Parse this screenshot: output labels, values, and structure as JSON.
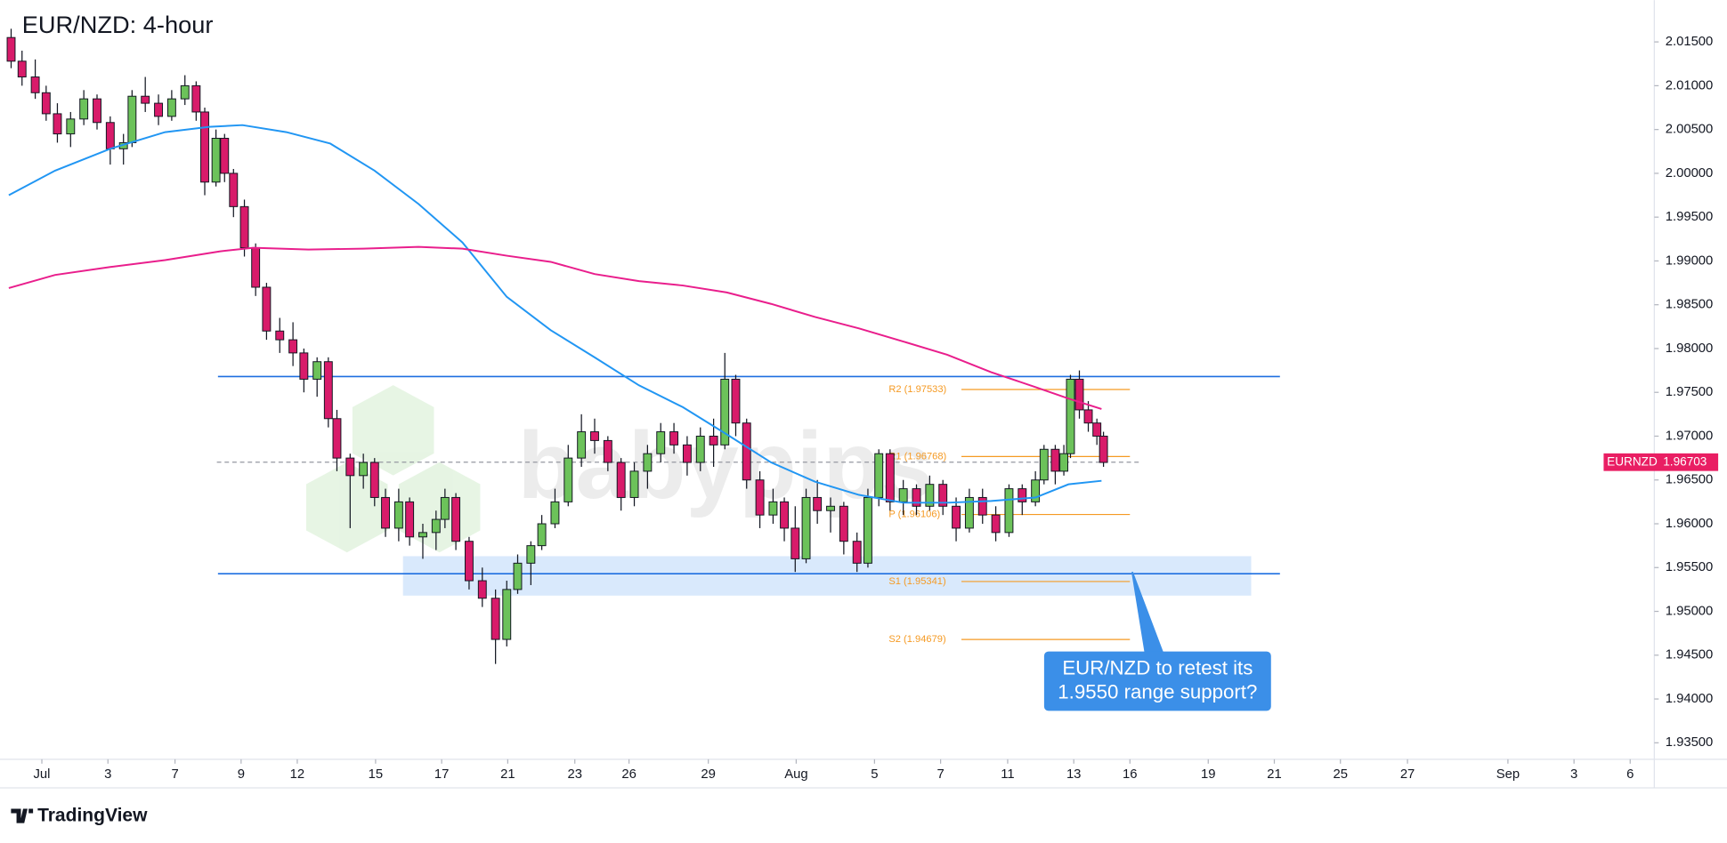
{
  "chart_data": {
    "type": "candlestick",
    "title": "EUR/NZD: 4-hour",
    "watermark": "babypips",
    "brand": "TradingView",
    "x": [
      -0.93,
      -0.6,
      -0.2,
      0.13,
      0.47,
      0.87,
      1.27,
      1.67,
      2.07,
      2.47,
      2.73,
      3.13,
      3.53,
      3.93,
      4.33,
      4.67,
      4.93,
      5.27,
      5.53,
      5.8,
      6.13,
      6.47,
      6.8,
      7.2,
      7.6,
      7.93,
      8.33,
      8.67,
      8.93,
      9.33,
      9.73,
      10.07,
      10.4,
      10.8,
      11.13,
      11.53,
      11.93,
      12.2,
      12.53,
      12.93,
      13.33,
      13.73,
      14.07,
      14.4,
      14.8,
      15.13,
      15.53,
      15.93,
      16.33,
      16.73,
      17.13,
      17.53,
      17.93,
      18.33,
      18.73,
      19.13,
      19.53,
      19.93,
      20.33,
      20.67,
      21,
      21.33,
      21.73,
      22.13,
      22.47,
      22.8,
      23.13,
      23.47,
      23.87,
      24.27,
      24.67,
      25,
      25.33,
      25.67,
      26.07,
      26.47,
      26.87,
      27.27,
      27.67,
      28.07,
      28.47,
      28.87,
      29.27,
      29.67,
      30.07,
      30.33,
      30.67,
      30.93,
      31.13,
      31.4,
      31.67,
      31.93,
      32.13
    ],
    "open": [
      2.0155,
      2.0128,
      2.011,
      2.0092,
      2.0068,
      2.0045,
      2.0062,
      2.0085,
      2.0058,
      2.0028,
      2.0035,
      2.0088,
      2.008,
      2.0065,
      2.0085,
      2.01,
      2.007,
      1.999,
      2.004,
      2.0,
      1.9962,
      1.9915,
      1.987,
      1.982,
      1.981,
      1.9795,
      1.9765,
      1.9785,
      1.972,
      1.9675,
      1.9655,
      1.967,
      1.963,
      1.9595,
      1.9625,
      1.9585,
      1.959,
      1.9605,
      1.963,
      1.958,
      1.9535,
      1.9515,
      1.9468,
      1.9525,
      1.9555,
      1.9575,
      1.96,
      1.9625,
      1.9675,
      1.9705,
      1.9695,
      1.967,
      1.963,
      1.966,
      1.968,
      1.9705,
      1.969,
      1.967,
      1.97,
      1.969,
      1.9765,
      1.9715,
      1.965,
      1.961,
      1.9625,
      1.9595,
      1.956,
      1.963,
      1.9615,
      1.962,
      1.958,
      1.9555,
      1.963,
      1.968,
      1.9625,
      1.964,
      1.962,
      1.9645,
      1.962,
      1.9595,
      1.963,
      1.961,
      1.959,
      1.964,
      1.9625,
      1.965,
      1.9685,
      1.966,
      1.968,
      1.9765,
      1.973,
      1.9715,
      1.97
    ],
    "high": [
      2.0165,
      2.014,
      2.013,
      2.01,
      2.008,
      2.007,
      2.0095,
      2.009,
      2.0065,
      2.0045,
      2.0095,
      2.011,
      2.009,
      2.0095,
      2.0112,
      2.0105,
      2.0075,
      2.005,
      2.0045,
      2.0005,
      1.997,
      1.992,
      1.9875,
      1.9835,
      1.983,
      1.98,
      1.979,
      1.979,
      1.973,
      1.968,
      1.968,
      1.9675,
      1.964,
      1.964,
      1.963,
      1.96,
      1.9615,
      1.964,
      1.9635,
      1.9585,
      1.955,
      1.9525,
      1.9535,
      1.9565,
      1.958,
      1.961,
      1.964,
      1.969,
      1.9725,
      1.972,
      1.97,
      1.9675,
      1.967,
      1.969,
      1.9715,
      1.9715,
      1.97,
      1.971,
      1.972,
      1.9795,
      1.977,
      1.972,
      1.966,
      1.964,
      1.963,
      1.962,
      1.964,
      1.965,
      1.963,
      1.9625,
      1.959,
      1.964,
      1.9685,
      1.9685,
      1.965,
      1.9645,
      1.9655,
      1.965,
      1.963,
      1.964,
      1.964,
      1.962,
      1.9645,
      1.9645,
      1.966,
      1.969,
      1.969,
      1.969,
      1.977,
      1.9775,
      1.974,
      1.972,
      1.9705
    ],
    "low": [
      2.012,
      2.01,
      2.0085,
      2.006,
      2.0035,
      2.003,
      2.0055,
      2.005,
      2.001,
      2.001,
      2.003,
      2.007,
      2.0055,
      2.006,
      2.0078,
      2.006,
      1.9975,
      1.9985,
      1.999,
      1.995,
      1.9905,
      1.986,
      1.981,
      1.9795,
      1.978,
      1.975,
      1.9745,
      1.971,
      1.966,
      1.9595,
      1.964,
      1.962,
      1.9585,
      1.958,
      1.9575,
      1.956,
      1.957,
      1.9595,
      1.957,
      1.9525,
      1.9505,
      1.944,
      1.946,
      1.952,
      1.953,
      1.957,
      1.9595,
      1.962,
      1.9665,
      1.968,
      1.966,
      1.9615,
      1.962,
      1.964,
      1.967,
      1.968,
      1.9655,
      1.966,
      1.9665,
      1.9685,
      1.97,
      1.964,
      1.9595,
      1.96,
      1.958,
      1.9545,
      1.9555,
      1.96,
      1.959,
      1.9565,
      1.9545,
      1.955,
      1.962,
      1.9615,
      1.961,
      1.961,
      1.9615,
      1.961,
      1.958,
      1.959,
      1.96,
      1.958,
      1.9585,
      1.961,
      1.962,
      1.9645,
      1.9645,
      1.9655,
      1.9675,
      1.972,
      1.9705,
      1.969,
      1.9665
    ],
    "close": [
      2.0128,
      2.011,
      2.0092,
      2.0068,
      2.0045,
      2.0062,
      2.0085,
      2.0058,
      2.0028,
      2.0035,
      2.0088,
      2.008,
      2.0065,
      2.0085,
      2.01,
      2.007,
      1.999,
      2.004,
      2.0,
      1.9962,
      1.9915,
      1.987,
      1.982,
      1.981,
      1.9795,
      1.9765,
      1.9785,
      1.972,
      1.9675,
      1.9655,
      1.967,
      1.963,
      1.9595,
      1.9625,
      1.9585,
      1.959,
      1.9605,
      1.963,
      1.958,
      1.9535,
      1.9515,
      1.9468,
      1.9525,
      1.9555,
      1.9575,
      1.96,
      1.9625,
      1.9675,
      1.9705,
      1.9695,
      1.967,
      1.963,
      1.966,
      1.968,
      1.9705,
      1.969,
      1.967,
      1.97,
      1.969,
      1.9765,
      1.9715,
      1.965,
      1.961,
      1.9625,
      1.9595,
      1.956,
      1.963,
      1.9615,
      1.962,
      1.958,
      1.9555,
      1.963,
      1.968,
      1.9625,
      1.964,
      1.962,
      1.9645,
      1.962,
      1.9595,
      1.963,
      1.961,
      1.959,
      1.964,
      1.9625,
      1.965,
      1.9685,
      1.966,
      1.968,
      1.9765,
      1.973,
      1.9715,
      1.97,
      1.967
    ],
    "up_color": "#6cc25a",
    "down_color": "#d81b6a",
    "wick_color": "#131722",
    "moving_averages": [
      {
        "color": "#2196f3",
        "x": [
          -1,
          0.4,
          2.07,
          3.73,
          5.07,
          6.07,
          7.4,
          8.73,
          10.07,
          11.4,
          12.73,
          14.07,
          15.4,
          16.73,
          18.07,
          19.4,
          20.73,
          22.07,
          23.4,
          24.73,
          26.07,
          27.4,
          28.73,
          30.07,
          31.07,
          32.07
        ],
        "values": [
          1.9975,
          2.0003,
          2.0028,
          2.0047,
          2.0053,
          2.0055,
          2.0047,
          2.0034,
          2.0003,
          1.9965,
          1.9921,
          1.9859,
          1.9821,
          1.979,
          1.9758,
          1.9733,
          1.9702,
          1.967,
          1.9648,
          1.9633,
          1.9624,
          1.9624,
          1.9626,
          1.963,
          1.9645,
          1.9649
        ]
      },
      {
        "color": "#e91e8c",
        "x": [
          -1,
          0.4,
          2.07,
          3.73,
          5.4,
          6.4,
          8.07,
          9.73,
          11.4,
          12.73,
          14.07,
          15.4,
          16.73,
          18.07,
          19.4,
          20.73,
          22.07,
          23.4,
          24.73,
          26.07,
          27.4,
          28.73,
          30.07,
          31.07,
          32.07
        ],
        "values": [
          1.9869,
          1.9884,
          1.9893,
          1.9901,
          1.9911,
          1.9915,
          1.9913,
          1.9914,
          1.9916,
          1.9914,
          1.9906,
          1.9899,
          1.9885,
          1.9877,
          1.9872,
          1.9864,
          1.9851,
          1.9836,
          1.9823,
          1.9808,
          1.9793,
          1.9773,
          1.9756,
          1.9743,
          1.9731
        ]
      }
    ],
    "levels": [
      {
        "value": 1.9768,
        "color": "#1e6fe0",
        "span": [
          5.33,
          37.47
        ]
      },
      {
        "value": 1.9543,
        "color": "#1e6fe0",
        "span": [
          5.33,
          37.47
        ]
      }
    ],
    "zone": {
      "from": 1.9518,
      "to": 1.9563,
      "color": "#cfe3fb",
      "span": [
        10.93,
        36.6
      ]
    },
    "pivots": {
      "color": "#f59a23",
      "span": [
        27.83,
        32.93
      ],
      "items": [
        {
          "label": "R2 (1.97533)",
          "value": 1.97533
        },
        {
          "label": "R1 (1.96768)",
          "value": 1.96768
        },
        {
          "label": "P (1.96106)",
          "value": 1.96106
        },
        {
          "label": "S1 (1.95341)",
          "value": 1.95341
        },
        {
          "label": "S2 (1.94679)",
          "value": 1.94679
        }
      ]
    },
    "current_price": {
      "symbol": "EURNZD",
      "value": 1.96703,
      "color": "#e91e63"
    },
    "annotation": {
      "lines": [
        "EUR/NZD to retest its",
        "1.9550 range support?"
      ],
      "target": [
        33.0,
        1.9545
      ],
      "color": "#3b8fe8"
    },
    "xlim": [
      -1,
      48.8
    ],
    "ylim": [
      1.93312,
      2.01977
    ],
    "xticks": [
      {
        "value": 0,
        "label": "Jul"
      },
      {
        "value": 2,
        "label": "3"
      },
      {
        "value": 4.03,
        "label": "7"
      },
      {
        "value": 6.03,
        "label": "9"
      },
      {
        "value": 7.73,
        "label": "12"
      },
      {
        "value": 10.1,
        "label": "15"
      },
      {
        "value": 12.1,
        "label": "17"
      },
      {
        "value": 14.1,
        "label": "21"
      },
      {
        "value": 16.13,
        "label": "23"
      },
      {
        "value": 17.77,
        "label": "26"
      },
      {
        "value": 20.17,
        "label": "29"
      },
      {
        "value": 22.83,
        "label": "Aug"
      },
      {
        "value": 25.2,
        "label": "5"
      },
      {
        "value": 27.2,
        "label": "7"
      },
      {
        "value": 29.23,
        "label": "11"
      },
      {
        "value": 31.23,
        "label": "13"
      },
      {
        "value": 32.93,
        "label": "16"
      },
      {
        "value": 35.3,
        "label": "19"
      },
      {
        "value": 37.3,
        "label": "21"
      },
      {
        "value": 39.3,
        "label": "25"
      },
      {
        "value": 41.33,
        "label": "27"
      },
      {
        "value": 44.37,
        "label": "Sep"
      },
      {
        "value": 46.37,
        "label": "3"
      },
      {
        "value": 48.07,
        "label": "6"
      }
    ],
    "yticks": [
      {
        "value": 2.015,
        "label": "2.01500"
      },
      {
        "value": 2.01,
        "label": "2.01000"
      },
      {
        "value": 2.005,
        "label": "2.00500"
      },
      {
        "value": 2.0,
        "label": "2.00000"
      },
      {
        "value": 1.995,
        "label": "1.99500"
      },
      {
        "value": 1.99,
        "label": "1.99000"
      },
      {
        "value": 1.985,
        "label": "1.98500"
      },
      {
        "value": 1.98,
        "label": "1.98000"
      },
      {
        "value": 1.975,
        "label": "1.97500"
      },
      {
        "value": 1.97,
        "label": "1.97000"
      },
      {
        "value": 1.965,
        "label": "1.96500"
      },
      {
        "value": 1.96,
        "label": "1.96000"
      },
      {
        "value": 1.955,
        "label": "1.95500"
      },
      {
        "value": 1.95,
        "label": "1.95000"
      },
      {
        "value": 1.945,
        "label": "1.94500"
      },
      {
        "value": 1.94,
        "label": "1.94000"
      },
      {
        "value": 1.935,
        "label": "1.93500"
      }
    ]
  }
}
